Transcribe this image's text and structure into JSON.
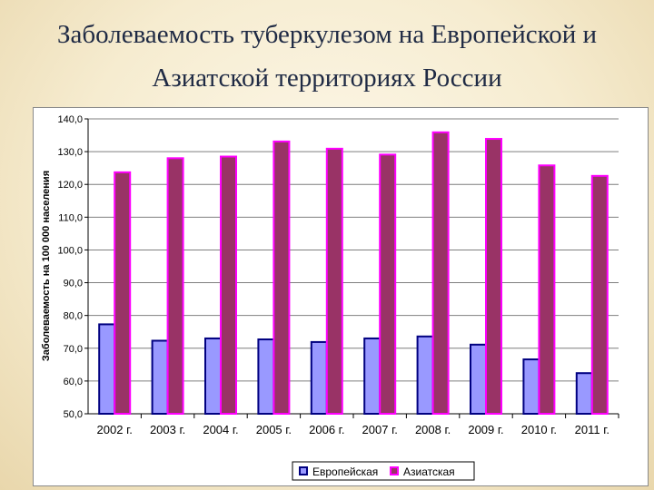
{
  "slide": {
    "title_line1": "Заболеваемость туберкулезом на Европейской и",
    "title_line2": "Азиатской  территориях  России"
  },
  "chart_data": {
    "type": "bar",
    "title": "",
    "xlabel": "",
    "ylabel": "Заболеваемость  на 100 000 населения",
    "ylim": [
      50,
      140
    ],
    "y_ticks": [
      "140,0",
      "130,0",
      "120,0",
      "110,0",
      "100,0",
      "90,0",
      "80,0",
      "70,0",
      "60,0",
      "50,0"
    ],
    "grid": true,
    "legend_position": "bottom",
    "categories": [
      "2002 г.",
      "2003 г.",
      "2004 г.",
      "2005 г.",
      "2006 г.",
      "2007 г.",
      "2008 г.",
      "2009 г.",
      "2010 г.",
      "2011 г."
    ],
    "series": [
      {
        "name": "Европейская",
        "color": "#9999ff",
        "border": "#000080",
        "values": [
          77.3,
          72.3,
          73.0,
          72.7,
          71.9,
          73.0,
          73.6,
          71.1,
          66.6,
          62.4
        ]
      },
      {
        "name": "Азиатская",
        "color": "#993366",
        "border": "#ff00ff",
        "values": [
          123.7,
          128.0,
          128.5,
          133.1,
          130.9,
          129.1,
          135.9,
          133.9,
          125.8,
          122.6
        ]
      }
    ]
  }
}
